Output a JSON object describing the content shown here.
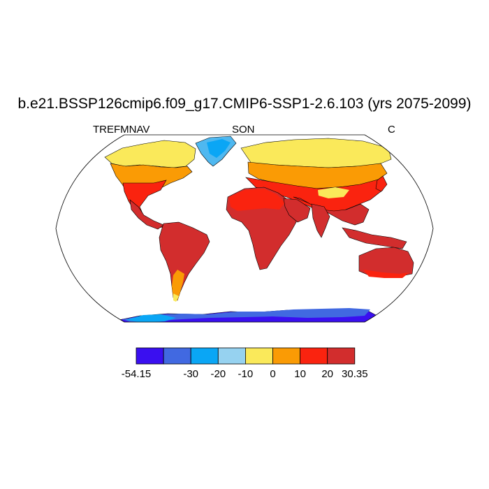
{
  "title": "b.e21.BSSP126cmip6.f09_g17.CMIP6-SSP1-2.6.103 (yrs 2075-2099)",
  "subtitle_left": "TREFMNAV",
  "subtitle_center": "SON",
  "subtitle_right": "C",
  "colorbar": {
    "colors": [
      "#3a0ff0",
      "#4169e1",
      "#0aa6f5",
      "#96d2f0",
      "#fae95a",
      "#fa9b05",
      "#fa230f",
      "#d22d2d"
    ],
    "labels": [
      "-54.15",
      "-30",
      "-20",
      "-10",
      "0",
      "10",
      "20",
      "30.35"
    ]
  },
  "colors": {
    "background": "#ffffff",
    "map_outline": "#000000",
    "coastline": "#000000"
  }
}
